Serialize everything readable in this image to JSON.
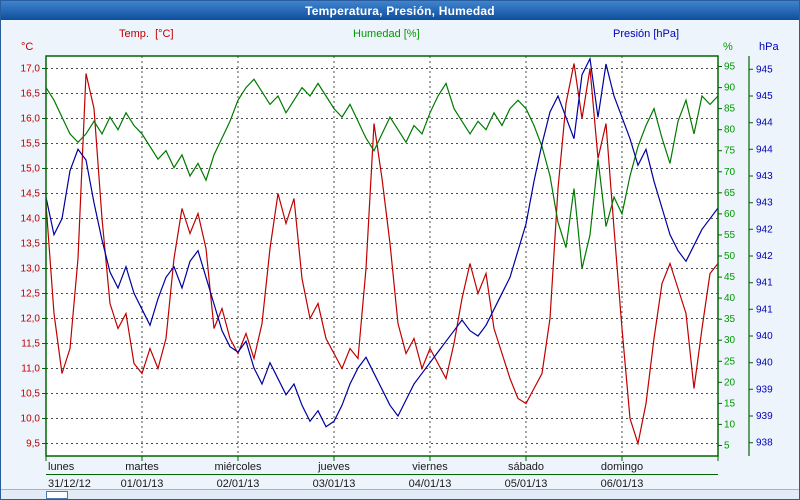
{
  "window": {
    "title": "Temperatura, Presión, Humedad",
    "titlebar_gradient": [
      "#3f83cf",
      "#0e4f9c"
    ]
  },
  "chart_data": {
    "type": "line",
    "title": "Temperatura, Presión, Humedad",
    "x": {
      "total_hours": 168,
      "hours_per_day": 24,
      "days": [
        {
          "name": "lunes",
          "date": "31/12/12"
        },
        {
          "name": "martes",
          "date": "01/01/13"
        },
        {
          "name": "miércoles",
          "date": "02/01/13"
        },
        {
          "name": "jueves",
          "date": "03/01/13"
        },
        {
          "name": "viernes",
          "date": "04/01/13"
        },
        {
          "name": "sábado",
          "date": "05/01/13"
        },
        {
          "name": "domingo",
          "date": "06/01/13"
        }
      ]
    },
    "grid": {
      "style": "dashed",
      "h_lines": "temp_ticks",
      "v_lines": "day_boundaries",
      "frame_color": "#006600"
    },
    "y_axes": {
      "temp": {
        "unit": "°C",
        "color": "#c00000",
        "min": 9.25,
        "max": 17.25,
        "ticks": [
          {
            "v": 17.0,
            "t": "17,0"
          },
          {
            "v": 16.5,
            "t": "16,5"
          },
          {
            "v": 16.0,
            "t": "16,0"
          },
          {
            "v": 15.5,
            "t": "15,5"
          },
          {
            "v": 15.0,
            "t": "15,0"
          },
          {
            "v": 14.5,
            "t": "14,5"
          },
          {
            "v": 14.0,
            "t": "14,0"
          },
          {
            "v": 13.5,
            "t": "13,5"
          },
          {
            "v": 13.0,
            "t": "13,0"
          },
          {
            "v": 12.5,
            "t": "12,5"
          },
          {
            "v": 12.0,
            "t": "12,0"
          },
          {
            "v": 11.5,
            "t": "11,5"
          },
          {
            "v": 11.0,
            "t": "11,0"
          },
          {
            "v": 10.5,
            "t": "10,5"
          },
          {
            "v": 10.0,
            "t": "10,0"
          },
          {
            "v": 9.5,
            "t": "9,5"
          }
        ]
      },
      "humidity": {
        "unit": "%",
        "color": "#009900",
        "min": 2.5,
        "max": 97.5,
        "ticks": [
          {
            "v": 95,
            "t": "95"
          },
          {
            "v": 90,
            "t": "90"
          },
          {
            "v": 85,
            "t": "85"
          },
          {
            "v": 80,
            "t": "80"
          },
          {
            "v": 75,
            "t": "75"
          },
          {
            "v": 70,
            "t": "70"
          },
          {
            "v": 65,
            "t": "65"
          },
          {
            "v": 60,
            "t": "60"
          },
          {
            "v": 55,
            "t": "55"
          },
          {
            "v": 50,
            "t": "50"
          },
          {
            "v": 45,
            "t": "45"
          },
          {
            "v": 40,
            "t": "40"
          },
          {
            "v": 35,
            "t": "35"
          },
          {
            "v": 30,
            "t": "30"
          },
          {
            "v": 25,
            "t": "25"
          },
          {
            "v": 20,
            "t": "20"
          },
          {
            "v": 15,
            "t": "15"
          },
          {
            "v": 10,
            "t": "10"
          },
          {
            "v": 5,
            "t": "5"
          }
        ]
      },
      "pressure": {
        "unit": "hPa",
        "color": "#0000bb",
        "min": 937.75,
        "max": 945.25,
        "ticks": [
          {
            "v": 945,
            "t": "945"
          },
          {
            "v": 944.5,
            "t": "945"
          },
          {
            "v": 944,
            "t": "944"
          },
          {
            "v": 943.5,
            "t": "944"
          },
          {
            "v": 943,
            "t": "943"
          },
          {
            "v": 942.5,
            "t": "943"
          },
          {
            "v": 942,
            "t": "942"
          },
          {
            "v": 941.5,
            "t": "942"
          },
          {
            "v": 941,
            "t": "941"
          },
          {
            "v": 940.5,
            "t": "941"
          },
          {
            "v": 940,
            "t": "940"
          },
          {
            "v": 939.5,
            "t": "940"
          },
          {
            "v": 939,
            "t": "939"
          },
          {
            "v": 938.5,
            "t": "939"
          },
          {
            "v": 938,
            "t": "938"
          }
        ]
      }
    },
    "series": [
      {
        "name": "Temp.  [°C]",
        "axis": "temp",
        "color": "#c00000",
        "x_start_hour": 0,
        "x_step_hours": 2,
        "values": [
          14.3,
          12.1,
          10.9,
          11.4,
          13.2,
          16.9,
          16.2,
          14.0,
          12.3,
          11.8,
          12.1,
          11.1,
          10.9,
          11.4,
          11.0,
          11.6,
          13.2,
          14.2,
          13.7,
          14.1,
          13.4,
          11.8,
          12.2,
          11.6,
          11.3,
          11.7,
          11.2,
          11.9,
          13.4,
          14.5,
          13.9,
          14.4,
          12.8,
          12.0,
          12.3,
          11.6,
          11.3,
          11.0,
          11.4,
          11.2,
          13.0,
          15.9,
          14.8,
          13.5,
          11.9,
          11.3,
          11.6,
          11.0,
          11.4,
          11.1,
          10.8,
          11.5,
          12.4,
          13.1,
          12.5,
          12.9,
          11.8,
          11.3,
          10.8,
          10.4,
          10.3,
          10.6,
          10.9,
          12.0,
          14.6,
          16.3,
          17.1,
          16.0,
          17.0,
          15.2,
          15.9,
          13.8,
          11.8,
          10.0,
          9.5,
          10.3,
          11.6,
          12.7,
          13.1,
          12.6,
          12.1,
          10.6,
          11.8,
          12.9,
          13.1
        ]
      },
      {
        "name": "Humedad [%]",
        "axis": "humidity",
        "color": "#007a00",
        "x_start_hour": 0,
        "x_step_hours": 2,
        "values": [
          90,
          87,
          83,
          79,
          77,
          79,
          82,
          79,
          83,
          80,
          84,
          81,
          79,
          76,
          73,
          75,
          71,
          74,
          69,
          72,
          68,
          74,
          78,
          82,
          87,
          90,
          92,
          89,
          86,
          88,
          84,
          87,
          90,
          88,
          91,
          88,
          85,
          83,
          86,
          82,
          78,
          75,
          79,
          83,
          80,
          77,
          81,
          79,
          84,
          88,
          91,
          85,
          82,
          79,
          82,
          80,
          84,
          81,
          85,
          87,
          85,
          81,
          76,
          69,
          58,
          52,
          66,
          47,
          55,
          73,
          57,
          64,
          60,
          69,
          76,
          81,
          85,
          78,
          72,
          82,
          87,
          79,
          88,
          86,
          88
        ]
      },
      {
        "name": "Presión [hPa]",
        "axis": "pressure",
        "color": "#0000a0",
        "x_start_hour": 0,
        "x_step_hours": 2,
        "values": [
          942.6,
          941.9,
          942.2,
          943.1,
          943.5,
          943.3,
          942.5,
          941.8,
          941.2,
          940.9,
          941.3,
          940.8,
          940.5,
          940.2,
          940.7,
          941.1,
          941.3,
          940.9,
          941.4,
          941.6,
          941.1,
          940.6,
          940.1,
          939.8,
          939.7,
          939.9,
          939.4,
          939.1,
          939.5,
          939.2,
          938.9,
          939.1,
          938.7,
          938.4,
          938.6,
          938.3,
          938.4,
          938.7,
          939.1,
          939.4,
          939.6,
          939.3,
          939.0,
          938.7,
          938.5,
          938.8,
          939.1,
          939.3,
          939.5,
          939.7,
          939.9,
          940.1,
          940.3,
          940.1,
          940.0,
          940.2,
          940.5,
          940.8,
          941.1,
          941.6,
          942.1,
          942.9,
          943.6,
          944.2,
          944.5,
          944.1,
          943.7,
          944.9,
          945.2,
          944.1,
          945.1,
          944.5,
          944.1,
          943.7,
          943.2,
          943.5,
          942.9,
          942.4,
          941.9,
          941.6,
          941.4,
          941.7,
          942.0,
          942.2,
          942.4
        ]
      }
    ]
  },
  "scrollbar": {
    "present": true
  }
}
